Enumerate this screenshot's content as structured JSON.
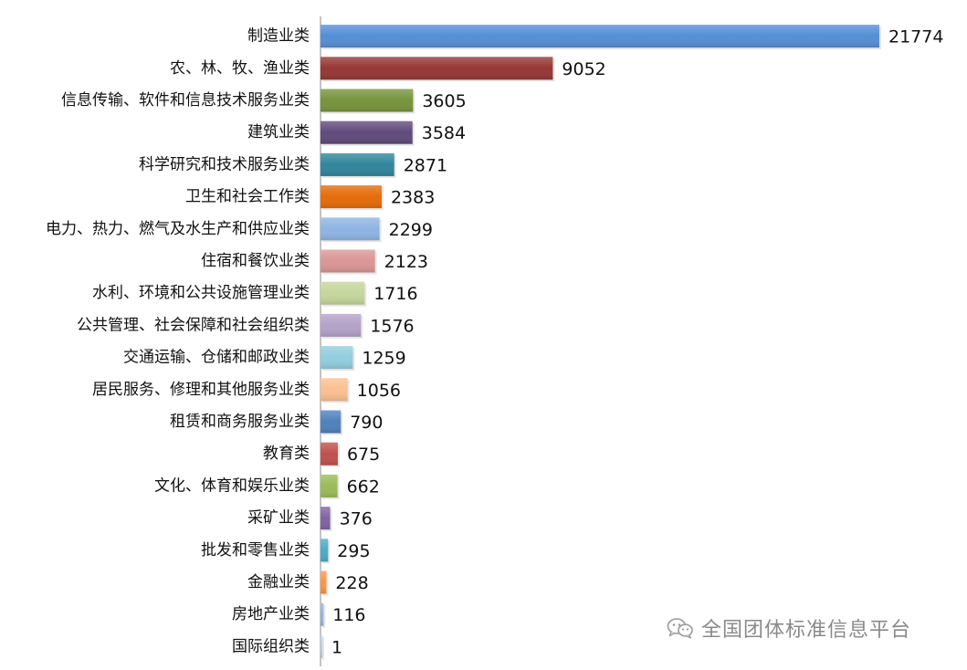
{
  "chart_data": {
    "type": "bar",
    "orientation": "horizontal",
    "categories": [
      "制造业类",
      "农、林、牧、渔业类",
      "信息传输、软件和信息技术服务业类",
      "建筑业类",
      "科学研究和技术服务业类",
      "卫生和社会工作类",
      "电力、热力、燃气及水生产和供应业类",
      "住宿和餐饮业类",
      "水利、环境和公共设施管理业类",
      "公共管理、社会保障和社会组织类",
      "交通运输、仓储和邮政业类",
      "居民服务、修理和其他服务业类",
      "租赁和商务服务业类",
      "教育类",
      "文化、体育和娱乐业类",
      "采矿业类",
      "批发和零售业类",
      "金融业类",
      "房地产业类",
      "国际组织类"
    ],
    "values": [
      21774,
      9052,
      3605,
      3584,
      2871,
      2383,
      2299,
      2123,
      1716,
      1576,
      1259,
      1056,
      790,
      675,
      662,
      376,
      295,
      228,
      116,
      1
    ],
    "value_labels": [
      "21774",
      "9052",
      "3605",
      "3584",
      "2871",
      "2383",
      "2299",
      "2123",
      "1716",
      "1576",
      "1259",
      "1056",
      "790",
      "675",
      "662",
      "376",
      "295",
      "228",
      "116",
      "1"
    ],
    "colors": [
      "#558ED5",
      "#953735",
      "#77933C",
      "#604A7B",
      "#31859C",
      "#E46C0A",
      "#8EB4E3",
      "#D99694",
      "#C3D69B",
      "#B3A2C7",
      "#93CDDD",
      "#FAC090",
      "#4F81BD",
      "#C0504D",
      "#9BBB59",
      "#8064A2",
      "#4BACC6",
      "#F79646",
      "#95B3D7",
      "#B9CDE5"
    ],
    "xlim": [
      0,
      21774
    ],
    "grid": false,
    "legend": "none",
    "data_labels": true
  },
  "watermark": {
    "icon": "wechat-icon",
    "text": "全国团体标准信息平台"
  }
}
